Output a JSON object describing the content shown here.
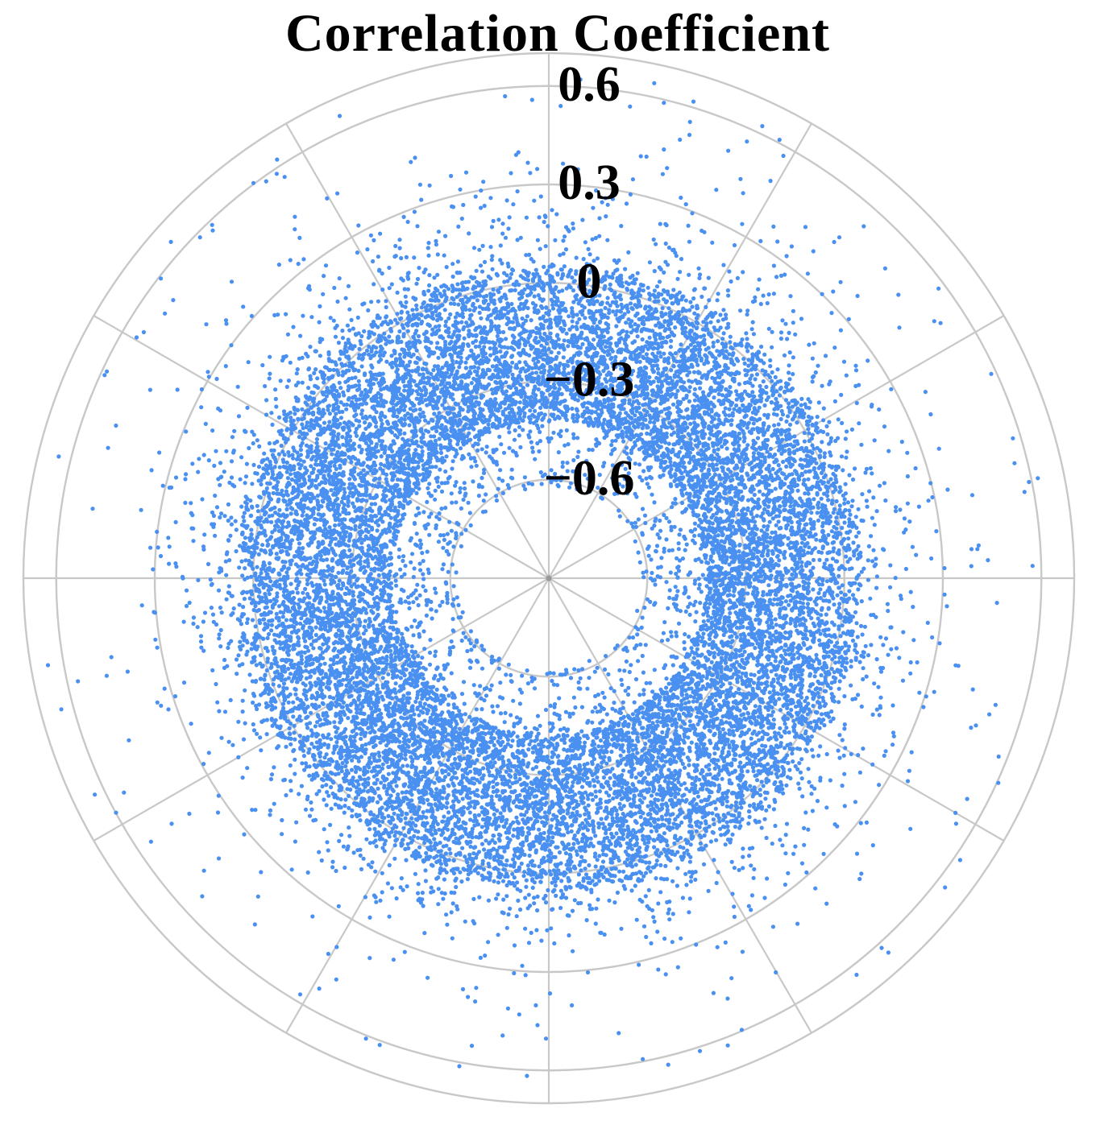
{
  "chart_data": {
    "type": "scatter",
    "coordinate_system": "polar",
    "title": "Correlation Coefficient",
    "radial_axis": {
      "ticks": [
        -0.6,
        -0.3,
        0,
        0.3,
        0.6
      ],
      "tick_labels": [
        "−0.6",
        "−0.3",
        "0",
        "0.3",
        "0.6"
      ],
      "range": [
        -0.9,
        0.7
      ]
    },
    "angular_gridlines_deg": [
      0,
      30,
      60,
      90,
      120,
      150,
      180,
      210,
      240,
      270,
      300,
      330
    ],
    "grid": true,
    "legend": "none",
    "point_color": "#4a90f0",
    "grid_color": "#c8c8c8",
    "point_distribution": {
      "approx_count": 18000,
      "dense_band_radius": [
        -0.42,
        0.05
      ],
      "sparse_spread_radius": [
        -0.62,
        0.62
      ],
      "outlier_radius_max": 0.65
    }
  }
}
